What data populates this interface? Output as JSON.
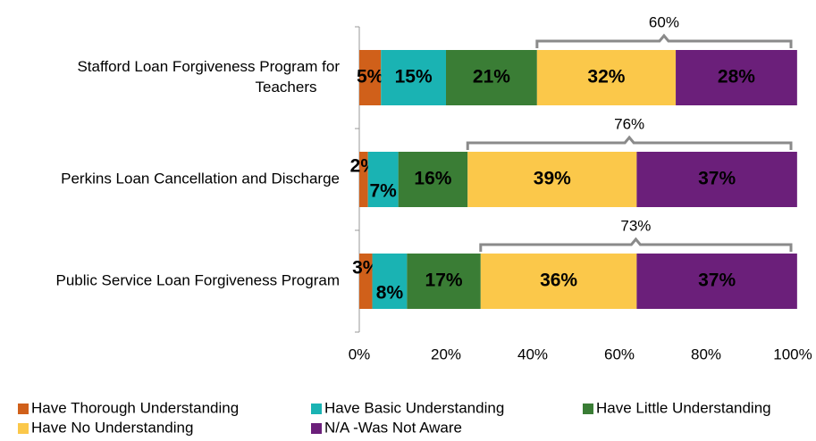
{
  "chart_data": {
    "type": "stacked-bar-horizontal",
    "categories": [
      "Stafford Loan Forgiveness Program for Teachers",
      "Perkins Loan Cancellation and Discharge",
      "Public Service Loan Forgiveness Program"
    ],
    "series": [
      {
        "name": "Have Thorough Understanding",
        "color": "#d0601a",
        "values": [
          5,
          2,
          3
        ],
        "value_labels": [
          "5%",
          "2%",
          "3%"
        ]
      },
      {
        "name": "Have Basic Understanding",
        "color": "#1ab3b3",
        "values": [
          15,
          7,
          8
        ],
        "value_labels": [
          "15%",
          "7%",
          "8%"
        ]
      },
      {
        "name": "Have Little Understanding",
        "color": "#3a7d35",
        "values": [
          21,
          16,
          17
        ],
        "value_labels": [
          "21%",
          "16%",
          "17%"
        ]
      },
      {
        "name": "Have No Understanding",
        "color": "#fbc84a",
        "values": [
          32,
          39,
          36
        ],
        "value_labels": [
          "32%",
          "39%",
          "36%"
        ]
      },
      {
        "name": "N/A -Was Not Aware",
        "color": "#6b1f7a",
        "values": [
          28,
          37,
          37
        ],
        "value_labels": [
          "28%",
          "37%",
          "37%"
        ]
      }
    ],
    "annotations": [
      {
        "value": 60,
        "label": "60%"
      },
      {
        "value": 76,
        "label": "76%"
      },
      {
        "value": 73,
        "label": "73%"
      }
    ],
    "xlim": [
      0,
      100
    ],
    "xticks": [
      {
        "value": 0,
        "label": "0%"
      },
      {
        "value": 20,
        "label": "20%"
      },
      {
        "value": 40,
        "label": "40%"
      },
      {
        "value": 60,
        "label": "60%"
      },
      {
        "value": 80,
        "label": "80%"
      },
      {
        "value": 100,
        "label": "100%"
      }
    ],
    "legend": "bottom"
  }
}
